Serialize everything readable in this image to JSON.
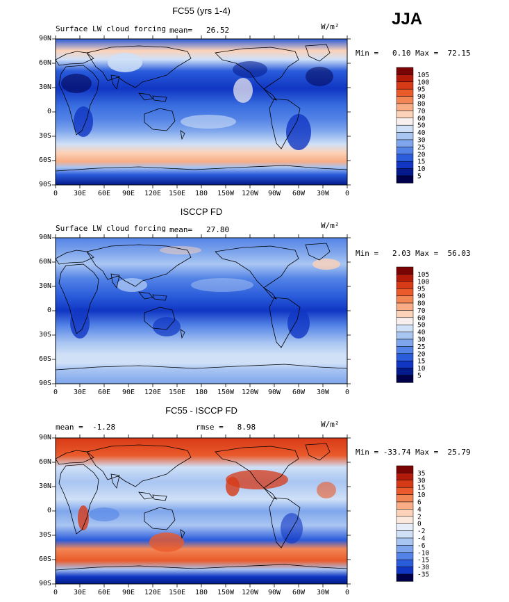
{
  "season": "JJA",
  "lat_labels": [
    "90N",
    "60N",
    "30N",
    "0",
    "30S",
    "60S",
    "90S"
  ],
  "lon_labels": [
    "0",
    "30E",
    "60E",
    "90E",
    "120E",
    "150E",
    "180",
    "150W",
    "120W",
    "90W",
    "60W",
    "30W",
    "0"
  ],
  "panels": [
    {
      "title": "FC55 (yrs 1-4)",
      "left_text": "Surface LW cloud forcing",
      "mean_text": "mean=   26.52",
      "units": "W/m²",
      "minmax_text": "Min =   0.10 Max =  72.15",
      "colorbar_levels": [
        "105",
        "100",
        "95",
        "90",
        "80",
        "70",
        "60",
        "50",
        "40",
        "30",
        "25",
        "20",
        "15",
        "10",
        "5"
      ]
    },
    {
      "title": "ISCCP FD",
      "left_text": "Surface LW cloud forcing",
      "mean_text": "mean=   27.80",
      "units": "W/m²",
      "minmax_text": "Min =   2.03 Max =  56.03",
      "colorbar_levels": [
        "105",
        "100",
        "95",
        "90",
        "80",
        "70",
        "60",
        "50",
        "40",
        "30",
        "25",
        "20",
        "15",
        "10",
        "5"
      ]
    },
    {
      "title": "FC55 - ISCCP FD",
      "left_text": "mean =  -1.28",
      "mean_text": "rmse =   8.98",
      "units": "W/m²",
      "minmax_text": "Min = -33.74 Max =  25.79",
      "colorbar_levels": [
        "35",
        "30",
        "15",
        "10",
        "6",
        "4",
        "2",
        "0",
        "-2",
        "-4",
        "-6",
        "-10",
        "-15",
        "-30",
        "-35"
      ]
    }
  ],
  "colors": {
    "abs_scale": [
      "#7a0403",
      "#b41a0a",
      "#d73a17",
      "#ea5a2a",
      "#f38655",
      "#f8ad86",
      "#fcd2b8",
      "#f7f0ef",
      "#cfe0f7",
      "#a9c5f2",
      "#7fa6ec",
      "#5383e6",
      "#2a5cdb",
      "#1036c3",
      "#041a8c",
      "#00004a"
    ],
    "diff_scale": [
      "#7a0403",
      "#b41a0a",
      "#d73a17",
      "#ea5a2a",
      "#f38655",
      "#f8ad86",
      "#fcd2b8",
      "#fbe9dd",
      "#e6eefa",
      "#cfe0f7",
      "#a9c5f2",
      "#7fa6ec",
      "#5383e6",
      "#2a5cdb",
      "#1036c3",
      "#00004a"
    ]
  }
}
